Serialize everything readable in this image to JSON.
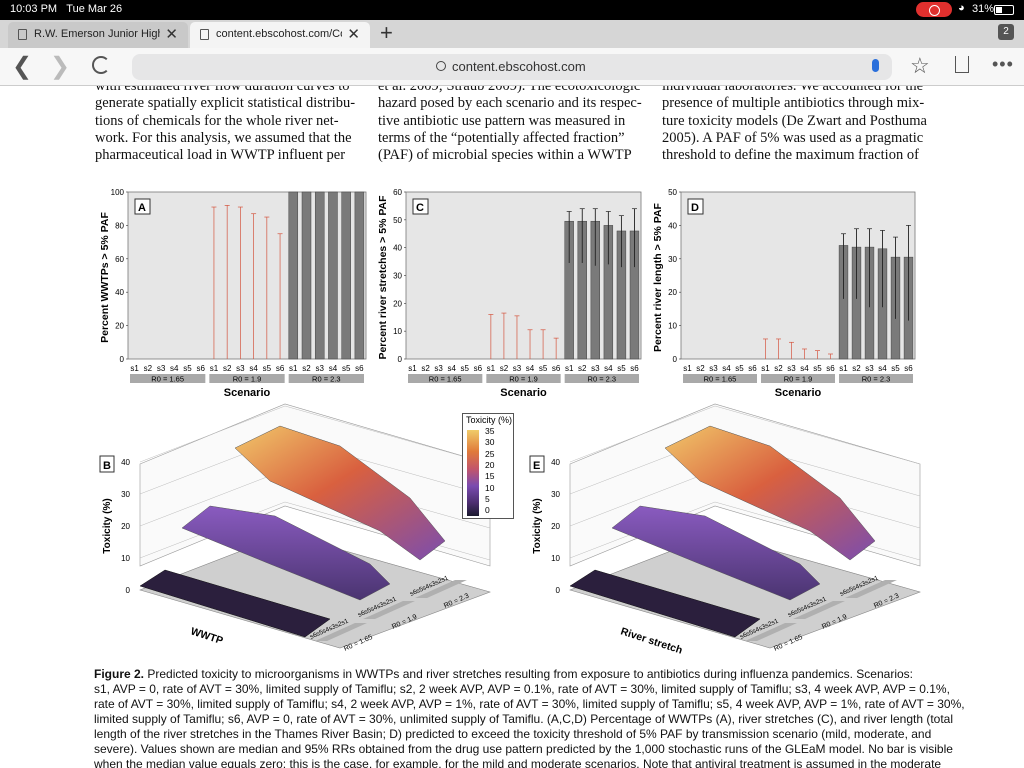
{
  "status": {
    "time": "10:03 PM",
    "date": "Tue Mar 26",
    "battery": "31%"
  },
  "tabs": [
    {
      "label": "R.W. Emerson Junior High S",
      "active": false
    },
    {
      "label": "content.ebscohost.com/Co",
      "active": true
    }
  ],
  "tab_count": "2",
  "address": {
    "url": "content.ebscohost.com"
  },
  "article": {
    "col1": [
      "with estimated river flow duration curves to",
      "generate spatially explicit statistical distribu-",
      "tions of chemicals for the whole river net-",
      "work. For this analysis, we assumed that the",
      "pharmaceutical load in WWTP influent per"
    ],
    "col2": [
      "et al. 2009; Straub 2009). The ecotoxicologic",
      "hazard posed by each scenario and its respec-",
      "tive antibiotic use pattern was measured in",
      "terms of the “potentially affected fraction”",
      "(PAF) of microbial species within a WWTP"
    ],
    "col3": [
      "individual laboratories. We accounted for the",
      "presence of multiple antibiotics through mix-",
      "ture toxicity models (De Zwart and Posthuma",
      "2005). A PAF of 5% was used as a pragmatic",
      "threshold to define the maximum fraction of"
    ]
  },
  "figure": {
    "scenarios": [
      "s1",
      "s2",
      "s3",
      "s4",
      "s5",
      "s6"
    ],
    "r0_groups": [
      "R0 = 1.65",
      "R0 = 1.9",
      "R0 = 2.3"
    ],
    "xlabel": "Scenario",
    "surface_b_xlabel": "WWTP",
    "surface_e_xlabel": "River stretch",
    "surface_ylabel": "Toxicity (%)",
    "surface_ticks": [
      "0",
      "10",
      "20",
      "30",
      "40"
    ],
    "surface_group_labels": [
      "s6s5s4s3s2s1",
      "R0 = 1.65",
      "s6s5s4s3s2s1",
      "R0 = 1.9",
      "s6s5s4s3s2s1",
      "R0 = 2.3"
    ],
    "legend": {
      "title": "Toxicity (%)",
      "ticks": [
        "35",
        "30",
        "25",
        "20",
        "15",
        "10",
        "5",
        "0"
      ]
    }
  },
  "chart_data": [
    {
      "type": "bar",
      "panel": "A",
      "ylabel": "Percent WWTPs > 5% PAF",
      "xlabel": "Scenario",
      "ylim": [
        0,
        100
      ],
      "yticks": [
        0,
        20,
        40,
        60,
        80,
        100
      ],
      "series": [
        {
          "name": "R0 = 1.65",
          "values": [
            0,
            0,
            0,
            0,
            0,
            0
          ],
          "upper": [
            0,
            0,
            0,
            0,
            0,
            0
          ],
          "lower": [
            0,
            0,
            0,
            0,
            0,
            0
          ]
        },
        {
          "name": "R0 = 1.9",
          "values": [
            0,
            0,
            0,
            0,
            0,
            0
          ],
          "upper": [
            91,
            92,
            91,
            87,
            85,
            75
          ],
          "lower": [
            0,
            0,
            0,
            0,
            0,
            0
          ]
        },
        {
          "name": "R0 = 2.3",
          "values": [
            100,
            100,
            100,
            100,
            100,
            100
          ],
          "upper": [
            100,
            100,
            100,
            100,
            100,
            100
          ],
          "lower": [
            100,
            100,
            100,
            100,
            100,
            100
          ]
        }
      ]
    },
    {
      "type": "bar",
      "panel": "C",
      "ylabel": "Percent river stretches > 5% PAF",
      "xlabel": "Scenario",
      "ylim": [
        0,
        60
      ],
      "yticks": [
        0,
        10,
        20,
        30,
        40,
        50,
        60
      ],
      "series": [
        {
          "name": "R0 = 1.65",
          "values": [
            0,
            0,
            0,
            0,
            0,
            0
          ],
          "upper": [
            0,
            0,
            0,
            0,
            0,
            0
          ],
          "lower": [
            0,
            0,
            0,
            0,
            0,
            0
          ]
        },
        {
          "name": "R0 = 1.9",
          "values": [
            0,
            0,
            0,
            0,
            0,
            0
          ],
          "upper": [
            16,
            16.5,
            15.5,
            10.5,
            10.5,
            7.5
          ],
          "lower": [
            0,
            0,
            0,
            0,
            0,
            0
          ]
        },
        {
          "name": "R0 = 2.3",
          "values": [
            49.5,
            49.5,
            49.5,
            48,
            46,
            46
          ],
          "upper": [
            53,
            54,
            54,
            53,
            51.5,
            54
          ],
          "lower": [
            34.5,
            34.5,
            33.5,
            34,
            33,
            33
          ]
        }
      ]
    },
    {
      "type": "bar",
      "panel": "D",
      "ylabel": "Percent river length > 5% PAF",
      "xlabel": "Scenario",
      "ylim": [
        0,
        50
      ],
      "yticks": [
        0,
        10,
        20,
        30,
        40,
        50
      ],
      "series": [
        {
          "name": "R0 = 1.65",
          "values": [
            0,
            0,
            0,
            0,
            0,
            0
          ],
          "upper": [
            0,
            0,
            0,
            0,
            0,
            0
          ],
          "lower": [
            0,
            0,
            0,
            0,
            0,
            0
          ]
        },
        {
          "name": "R0 = 1.9",
          "values": [
            0,
            0,
            0,
            0,
            0,
            0
          ],
          "upper": [
            6,
            6,
            5,
            3,
            2.5,
            1.5
          ],
          "lower": [
            0,
            0,
            0,
            0,
            0,
            0
          ]
        },
        {
          "name": "R0 = 2.3",
          "values": [
            34,
            33.5,
            33.5,
            33,
            30.5,
            30.5
          ],
          "upper": [
            37.5,
            39,
            39,
            38.5,
            36.5,
            40
          ],
          "lower": [
            18,
            18,
            15.5,
            15.5,
            12,
            11.5
          ]
        }
      ]
    }
  ],
  "caption": {
    "lines": [
      "Figure 2. Predicted toxicity to microorganisms in WWTPs and river stretches resulting from exposure to antibiotics during influenza pandemics. Scenarios:",
      "s1, AVP = 0, rate of AVT = 30%, limited supply of Tamiflu; s2, 2 week AVP, AVP = 0.1%, rate of AVT = 30%, limited supply of Tamiflu; s3, 4 week AVP, AVP = 0.1%,",
      "rate of AVT = 30%, limited supply of Tamiflu; s4, 2 week AVP, AVP = 1%, rate of AVT = 30%, limited supply of Tamiflu; s5, 4 week AVP, AVP = 1%, rate of AVT = 30%,",
      "limited supply of Tamiflu; s6, AVP = 0, rate of AVT = 30%, unlimited supply of Tamiflu. (A,C,D) Percentage of WWTPs (A), river stretches (C), and river length (total",
      "length of the river stretches in the Thames River Basin; D) predicted to exceed the toxicity threshold of 5% PAF by transmission scenario (mild, moderate, and",
      "severe). Values shown are median and 95% RRs obtained from the drug use pattern predicted by the 1,000 stochastic runs of the GLEaM model. No bar is visible",
      "when the median value equals zero; this is the case, for example, for the mild and moderate scenarios. Note that antiviral treatment is assumed in the moderate"
    ]
  }
}
